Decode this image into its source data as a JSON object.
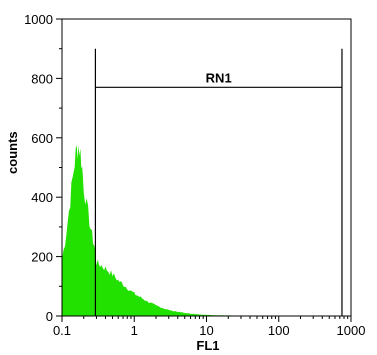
{
  "chart_data": {
    "type": "area",
    "xlabel": "FL1",
    "ylabel": "counts",
    "x_scale": "log",
    "xlim": [
      0.1,
      1000
    ],
    "ylim": [
      0,
      1000
    ],
    "x_ticks": [
      "0.1",
      "1",
      "10",
      "100",
      "1000"
    ],
    "y_ticks": [
      "0",
      "200",
      "400",
      "600",
      "800",
      "1000"
    ],
    "grid": false,
    "colors": {
      "fill": "#22e000",
      "axis": "#000000",
      "gate": "#000000"
    },
    "series": [
      {
        "x": [
          0.1,
          0.11,
          0.12,
          0.13,
          0.14,
          0.15,
          0.16,
          0.17,
          0.18,
          0.19,
          0.2,
          0.22,
          0.24,
          0.26,
          0.28,
          0.29,
          0.3,
          0.35,
          0.4,
          0.5,
          0.6,
          0.8,
          1,
          1.5,
          2,
          3,
          5,
          8,
          12,
          20,
          40,
          100,
          1000
        ],
        "y": [
          190,
          250,
          320,
          390,
          460,
          520,
          560,
          575,
          550,
          500,
          440,
          370,
          320,
          270,
          240,
          210,
          180,
          170,
          160,
          140,
          120,
          95,
          75,
          50,
          35,
          20,
          10,
          5,
          3,
          2,
          1,
          0,
          0
        ]
      }
    ],
    "gate": {
      "label": "RN1",
      "x_start": 0.29,
      "x_end": 750,
      "y_level": 770,
      "y_top": 900
    }
  }
}
